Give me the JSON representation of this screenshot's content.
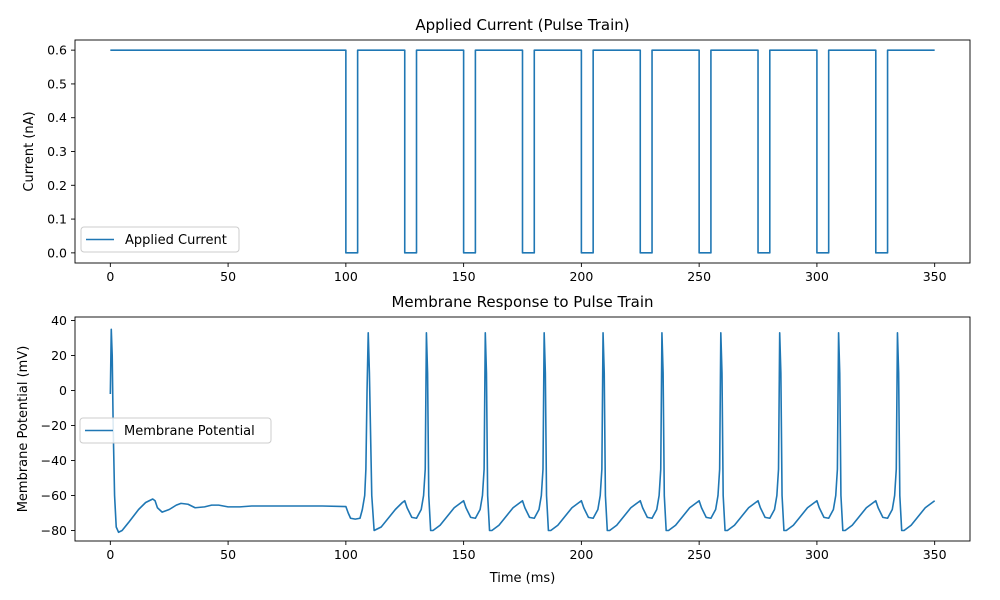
{
  "line_color": "#1f77b4",
  "chart_data": [
    {
      "type": "line",
      "title": "Applied Current (Pulse Train)",
      "xlabel": "",
      "ylabel": "Current (nA)",
      "xlim": [
        -15,
        365
      ],
      "ylim": [
        -0.03,
        0.63
      ],
      "xticks": [
        0,
        50,
        100,
        150,
        200,
        250,
        300,
        350
      ],
      "xtick_labels": [
        "0",
        "50",
        "100",
        "150",
        "200",
        "250",
        "300",
        "350"
      ],
      "yticks": [
        0.0,
        0.1,
        0.2,
        0.3,
        0.4,
        0.5,
        0.6
      ],
      "ytick_labels": [
        "0.0",
        "0.1",
        "0.2",
        "0.3",
        "0.4",
        "0.5",
        "0.6"
      ],
      "grid": false,
      "legend_position": "lower-left",
      "series": [
        {
          "name": "Applied Current",
          "x": [
            0,
            100,
            100,
            105,
            105,
            125,
            125,
            130,
            130,
            150,
            150,
            155,
            155,
            175,
            175,
            180,
            180,
            200,
            200,
            205,
            205,
            225,
            225,
            230,
            230,
            250,
            250,
            255,
            255,
            275,
            275,
            280,
            280,
            300,
            300,
            305,
            305,
            325,
            325,
            330,
            330,
            350
          ],
          "y": [
            0.6,
            0.6,
            0,
            0,
            0.6,
            0.6,
            0,
            0,
            0.6,
            0.6,
            0,
            0,
            0.6,
            0.6,
            0,
            0,
            0.6,
            0.6,
            0,
            0,
            0.6,
            0.6,
            0,
            0,
            0.6,
            0.6,
            0,
            0,
            0.6,
            0.6,
            0,
            0,
            0.6,
            0.6,
            0,
            0,
            0.6,
            0.6,
            0,
            0,
            0.6,
            0.6
          ]
        }
      ]
    },
    {
      "type": "line",
      "title": "Membrane Response to Pulse Train",
      "xlabel": "Time (ms)",
      "ylabel": "Membrane Potential (mV)",
      "xlim": [
        -15,
        365
      ],
      "ylim": [
        -86,
        42
      ],
      "xticks": [
        0,
        50,
        100,
        150,
        200,
        250,
        300,
        350
      ],
      "xtick_labels": [
        "0",
        "50",
        "100",
        "150",
        "200",
        "250",
        "300",
        "350"
      ],
      "yticks": [
        -80,
        -60,
        -40,
        -20,
        0,
        20,
        40
      ],
      "ytick_labels": [
        "−80",
        "−60",
        "−40",
        "−20",
        "0",
        "20",
        "40"
      ],
      "grid": false,
      "legend_position": "center-left",
      "series": [
        {
          "name": "Membrane Potential",
          "x": [
            0,
            0.4,
            0.8,
            1.2,
            1.8,
            2.5,
            3.5,
            5,
            8,
            12,
            15,
            18,
            19,
            20,
            22,
            25,
            28,
            30,
            33,
            36,
            40,
            43,
            46,
            50,
            55,
            60,
            70,
            80,
            90,
            100,
            101,
            102,
            104,
            106,
            107,
            108,
            108.5,
            109,
            109.5,
            110,
            111,
            112,
            115,
            118,
            121,
            124,
            125,
            126,
            128,
            130,
            132,
            133,
            133.7,
            134.2,
            134.7,
            135.2,
            136,
            137,
            140,
            143,
            146,
            149,
            150,
            151,
            153,
            155,
            157,
            158,
            158.7,
            159.2,
            159.7,
            160.2,
            161,
            162,
            165,
            168,
            171,
            174,
            175,
            176,
            178,
            180,
            182,
            183,
            183.7,
            184.2,
            184.7,
            185.2,
            186,
            187,
            190,
            193,
            196,
            199,
            200,
            201,
            203,
            205,
            207,
            208,
            208.7,
            209.2,
            209.7,
            210.2,
            211,
            212,
            215,
            218,
            221,
            224,
            225,
            226,
            228,
            230,
            232,
            233,
            233.7,
            234.2,
            234.7,
            235.2,
            236,
            237,
            240,
            243,
            246,
            249,
            250,
            251,
            253,
            255,
            257,
            258,
            258.7,
            259.2,
            259.7,
            260.2,
            261,
            262,
            265,
            268,
            271,
            274,
            275,
            276,
            278,
            280,
            282,
            283,
            283.7,
            284.2,
            284.7,
            285.2,
            286,
            287,
            290,
            293,
            296,
            299,
            300,
            301,
            303,
            305,
            307,
            308,
            308.7,
            309.2,
            309.7,
            310.2,
            311,
            312,
            315,
            318,
            321,
            324,
            325,
            326,
            328,
            330,
            332,
            333,
            333.7,
            334.2,
            334.7,
            335.2,
            336,
            337,
            340,
            343,
            346,
            350
          ],
          "y": [
            -2,
            35,
            20,
            -20,
            -60,
            -78,
            -81,
            -80,
            -75,
            -68,
            -64,
            -62,
            -63,
            -67,
            -69.5,
            -68,
            -65.5,
            -64.5,
            -65,
            -67,
            -66.5,
            -65.5,
            -65.5,
            -66.5,
            -66.5,
            -66,
            -66,
            -66,
            -66,
            -66.3,
            -70,
            -73,
            -73.5,
            -73,
            -68,
            -60,
            -45,
            0,
            33,
            10,
            -60,
            -80,
            -78,
            -73,
            -68,
            -64,
            -63,
            -67,
            -72.5,
            -73,
            -68,
            -60,
            -45,
            33,
            10,
            -60,
            -80,
            -80,
            -77,
            -72,
            -67,
            -64,
            -63,
            -67,
            -72.5,
            -73,
            -68,
            -60,
            -45,
            33,
            10,
            -60,
            -80,
            -80,
            -77,
            -72,
            -67,
            -64,
            -63,
            -67,
            -72.5,
            -73,
            -68,
            -60,
            -45,
            33,
            10,
            -60,
            -80,
            -80,
            -77,
            -72,
            -67,
            -64,
            -63,
            -67,
            -72.5,
            -73,
            -68,
            -60,
            -45,
            33,
            10,
            -60,
            -80,
            -80,
            -77,
            -72,
            -67,
            -64,
            -63,
            -67,
            -72.5,
            -73,
            -68,
            -60,
            -45,
            33,
            10,
            -60,
            -80,
            -80,
            -77,
            -72,
            -67,
            -64,
            -63,
            -67,
            -72.5,
            -73,
            -68,
            -60,
            -45,
            33,
            10,
            -60,
            -80,
            -80,
            -77,
            -72,
            -67,
            -64,
            -63,
            -67,
            -72.5,
            -73,
            -68,
            -60,
            -45,
            33,
            10,
            -60,
            -80,
            -80,
            -77,
            -72,
            -67,
            -64,
            -63,
            -67,
            -72.5,
            -73,
            -68,
            -60,
            -45,
            33,
            10,
            -60,
            -80,
            -80,
            -77,
            -72,
            -67,
            -64,
            -63,
            -67,
            -72.5,
            -73,
            -68,
            -60,
            -45,
            33,
            10,
            -60,
            -80,
            -80,
            -77,
            -72,
            -67,
            -63
          ]
        }
      ]
    }
  ]
}
